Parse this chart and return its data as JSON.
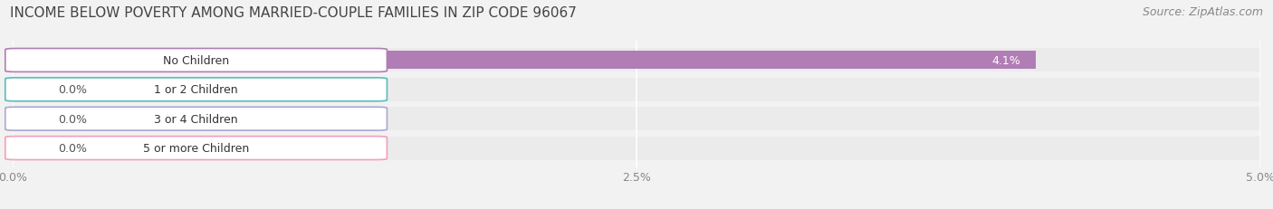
{
  "title": "INCOME BELOW POVERTY AMONG MARRIED-COUPLE FAMILIES IN ZIP CODE 96067",
  "source": "Source: ZipAtlas.com",
  "categories": [
    "No Children",
    "1 or 2 Children",
    "3 or 4 Children",
    "5 or more Children"
  ],
  "values": [
    4.1,
    0.0,
    0.0,
    0.0
  ],
  "bar_colors": [
    "#b07db5",
    "#5bbcb8",
    "#a9a8d4",
    "#f4a0b5"
  ],
  "xlim": [
    0,
    5.0
  ],
  "xticks": [
    0.0,
    2.5,
    5.0
  ],
  "xticklabels": [
    "0.0%",
    "2.5%",
    "5.0%"
  ],
  "background_color": "#f2f2f2",
  "bar_background_color": "#e4e4e8",
  "title_fontsize": 11,
  "source_fontsize": 9,
  "label_fontsize": 9,
  "value_fontsize": 9,
  "bar_row_bg": "#ebebeb"
}
